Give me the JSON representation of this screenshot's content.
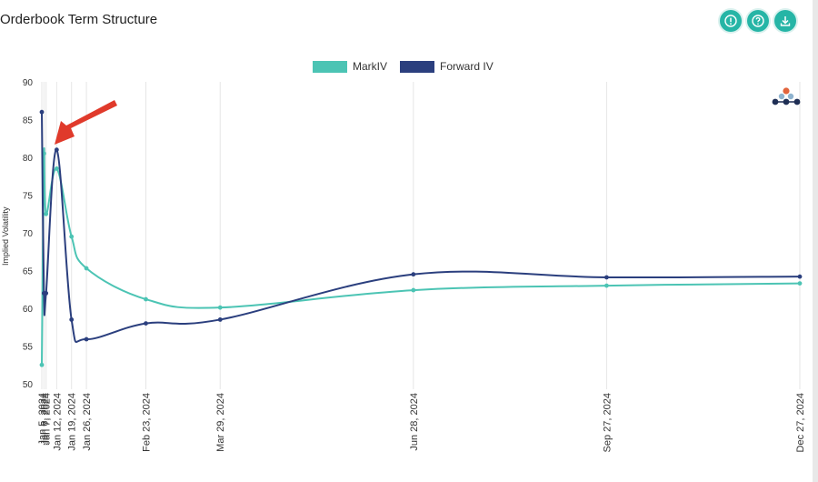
{
  "page": {
    "title": "Orderbook Term Structure"
  },
  "toolbar": [
    {
      "name": "info-icon",
      "glyph": "!"
    },
    {
      "name": "help-icon",
      "glyph": "?"
    },
    {
      "name": "download-icon",
      "glyph": "⤓"
    }
  ],
  "colors": {
    "markiv": "#4cc4b4",
    "forward": "#2b3f7e",
    "grid": "#e6e6e6",
    "arrow": "#e03a2b"
  },
  "chart_data": {
    "type": "line",
    "title": "Orderbook Term Structure",
    "ylabel": "Implied Volatility",
    "xlabel": "",
    "ylim": [
      50,
      90
    ],
    "yticks": [
      90,
      85,
      80,
      75,
      70,
      65,
      60,
      55,
      50
    ],
    "x_dates": [
      "Jan 5, 2024",
      "Jan 6, 2024",
      "Jan 7, 2024",
      "Jan 12, 2024",
      "Jan 19, 2024",
      "Jan 26, 2024",
      "Feb 23, 2024",
      "Mar 29, 2024",
      "Jun 28, 2024",
      "Sep 27, 2024",
      "Dec 27, 2024"
    ],
    "x_days": [
      0,
      1,
      2,
      7,
      14,
      21,
      49,
      84,
      175,
      266,
      357
    ],
    "tick_labels": [
      "Jan 5, 2024",
      "Jan 6, 2024",
      "Jan 7, 2024",
      "Jan 12, 2024",
      "Jan 19, 2024",
      "Jan 26, 2024",
      "Feb 23, 2024",
      "Mar 29, 2024",
      "Jun 28, 2024",
      "Sep 27, 2024",
      "Dec 27, 2024"
    ],
    "series": [
      {
        "name": "MarkIV",
        "values": [
          52.5,
          80.5,
          72.5,
          78.5,
          69.5,
          65.3,
          61.2,
          60.1,
          62.4,
          63.0,
          63.3
        ]
      },
      {
        "name": "Forward IV",
        "values": [
          86.0,
          62.0,
          62.0,
          81.0,
          58.5,
          55.9,
          58.0,
          58.5,
          64.5,
          64.1,
          64.2
        ]
      }
    ]
  }
}
